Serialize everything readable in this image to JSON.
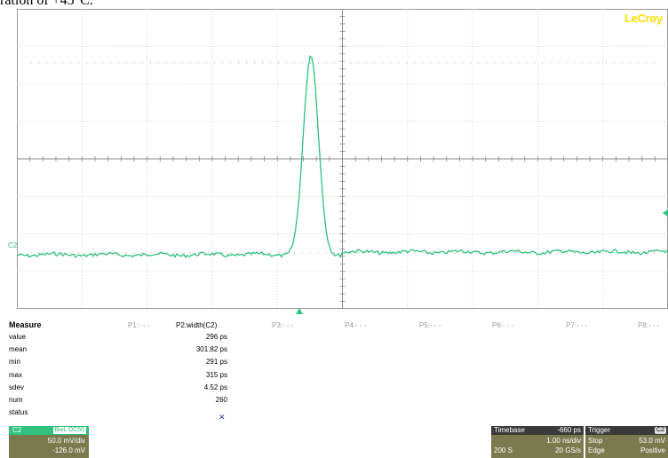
{
  "caption": "ration of +45°C.",
  "brand": "LeCroy",
  "channel_marker": "C2",
  "measure": {
    "title": "Measure",
    "params": [
      {
        "label": "P1:- - -",
        "active": false
      },
      {
        "label": "P2:width(C2)",
        "active": true
      },
      {
        "label": "P3:- - -",
        "active": false
      },
      {
        "label": "P4:- - -",
        "active": false
      },
      {
        "label": "P5:- - -",
        "active": false
      },
      {
        "label": "P6:- - -",
        "active": false
      },
      {
        "label": "P7:- - -",
        "active": false
      },
      {
        "label": "P8:- - -",
        "active": false
      }
    ],
    "rows": [
      {
        "label": "value",
        "value": "296 ps"
      },
      {
        "label": "mean",
        "value": "301.82 ps"
      },
      {
        "label": "min",
        "value": "291 ps"
      },
      {
        "label": "max",
        "value": "315 ps"
      },
      {
        "label": "sdev",
        "value": "4.52 ps"
      },
      {
        "label": "num",
        "value": "260"
      },
      {
        "label": "status",
        "value": ""
      }
    ],
    "status_icon": "status-warning-icon"
  },
  "channel": {
    "name": "C2",
    "coupling": "BwL DC50",
    "scale": "50.0 mV/div",
    "offset": "-126.0 mV"
  },
  "timebase": {
    "title": "Timebase",
    "delay": "-660 ps",
    "scale": "1.00 ns/div",
    "samples": "200 S",
    "rate": "20 GS/s"
  },
  "trigger": {
    "title": "Trigger",
    "channel": "C2",
    "mode": "Stop",
    "level": "53.0 mV",
    "type": "Edge",
    "slope": "Positive"
  },
  "colors": {
    "trace": "#2ec27e",
    "brand": "#ffe000",
    "panel": "#7a7a4e"
  }
}
